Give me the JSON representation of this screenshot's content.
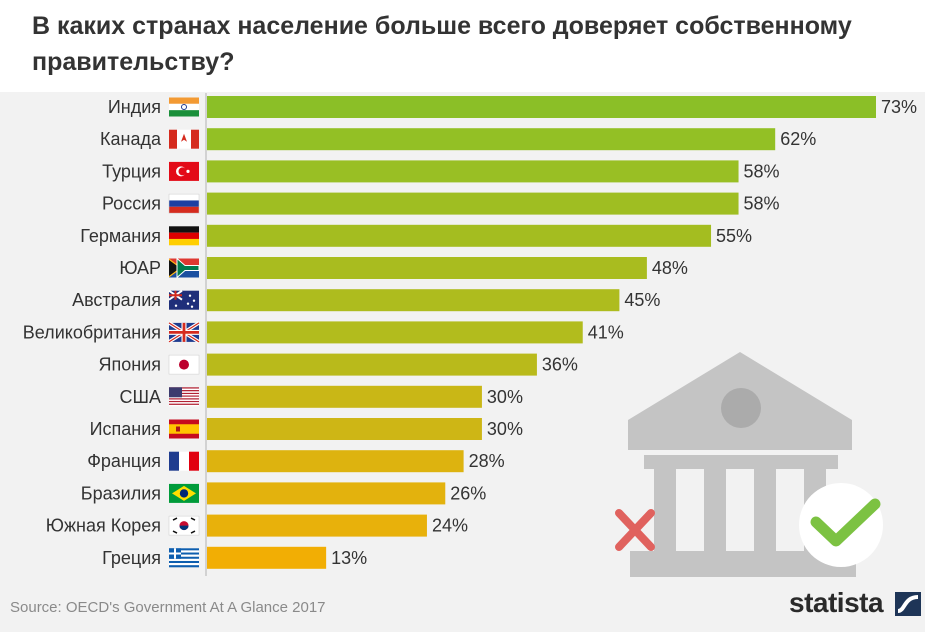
{
  "title": "В каких странах население больше всего доверяет собственному правительству?",
  "source": "Source: OECD's Government At A Glance 2017",
  "brand": "statista",
  "colors": {
    "green": "#8bbf27",
    "olive": "#b5bb1c",
    "mustard": "#ccb616",
    "yellow": "#e6b40c",
    "amber": "#f2ae04",
    "building": "#c4c4c4",
    "check": "#7cc242",
    "cross": "#e0625e"
  },
  "icons": [
    "government-building-icon",
    "check-icon",
    "cross-icon",
    "statista-logo-icon"
  ],
  "chart_data": {
    "type": "bar",
    "orientation": "horizontal",
    "title": "В каких странах население больше всего доверяет собственному правительству?",
    "xlabel": "",
    "ylabel": "",
    "unit": "%",
    "xlim": [
      0,
      73
    ],
    "categories": [
      "Индия",
      "Канада",
      "Турция",
      "Россия",
      "Германия",
      "ЮАР",
      "Австралия",
      "Великобритания",
      "Япония",
      "США",
      "Испания",
      "Франция",
      "Бразилия",
      "Южная Корея",
      "Греция"
    ],
    "flags": [
      "india",
      "canada",
      "turkey",
      "russia",
      "germany",
      "south-africa",
      "australia",
      "uk",
      "japan",
      "usa",
      "spain",
      "france",
      "brazil",
      "south-korea",
      "greece"
    ],
    "values": [
      73,
      62,
      58,
      58,
      55,
      48,
      45,
      41,
      36,
      30,
      30,
      28,
      26,
      24,
      13
    ],
    "value_labels": [
      "73%",
      "62%",
      "58%",
      "58%",
      "55%",
      "48%",
      "45%",
      "41%",
      "36%",
      "30%",
      "30%",
      "28%",
      "26%",
      "24%",
      "13%"
    ],
    "bar_colors": [
      "#8bbf27",
      "#93c025",
      "#99bf24",
      "#9fbe22",
      "#a4bd20",
      "#a9bc1f",
      "#aebc1e",
      "#b2bc1d",
      "#b9ba1b",
      "#c9b716",
      "#ceb615",
      "#ddb30f",
      "#e3b20d",
      "#e8b10b",
      "#f2ae04"
    ],
    "grid": false
  }
}
